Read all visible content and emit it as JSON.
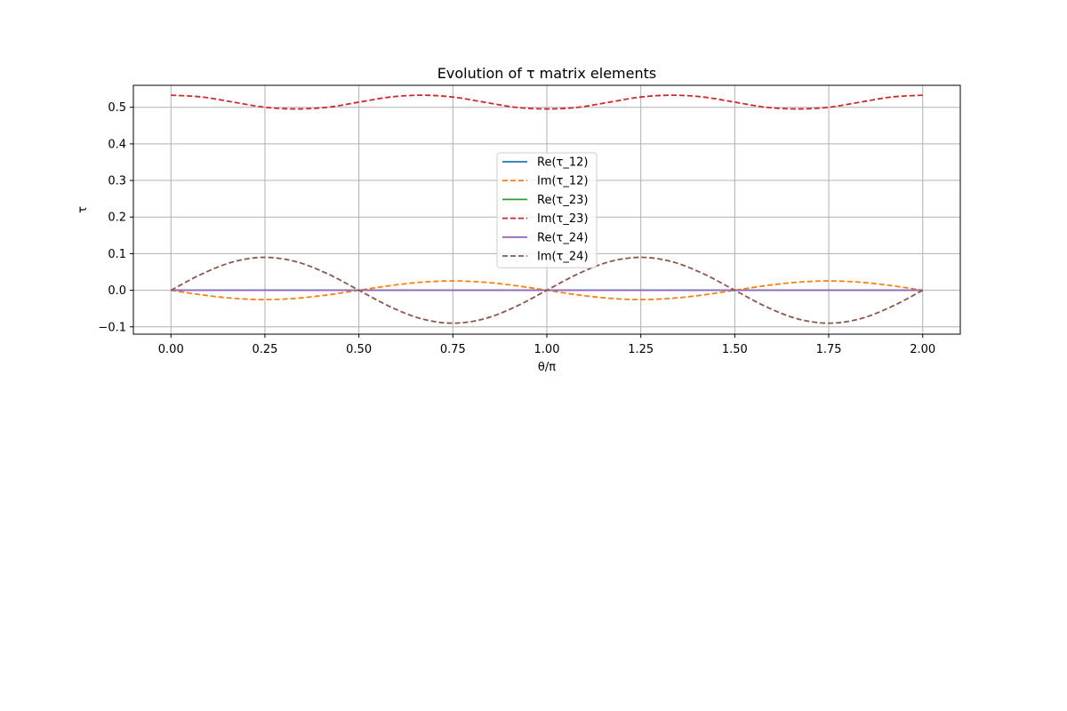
{
  "chart_data": {
    "type": "line",
    "title": "Evolution of τ matrix elements",
    "xlabel": "θ/π",
    "ylabel": "τ",
    "xlim": [
      -0.1,
      2.1
    ],
    "ylim": [
      -0.12,
      0.56
    ],
    "xticks": [
      0.0,
      0.25,
      0.5,
      0.75,
      1.0,
      1.25,
      1.5,
      1.75,
      2.0
    ],
    "xtick_labels": [
      "0.00",
      "0.25",
      "0.50",
      "0.75",
      "1.00",
      "1.25",
      "1.50",
      "1.75",
      "2.00"
    ],
    "yticks": [
      -0.1,
      0.0,
      0.1,
      0.2,
      0.3,
      0.4,
      0.5
    ],
    "ytick_labels": [
      "−0.1",
      "0.0",
      "0.1",
      "0.2",
      "0.3",
      "0.4",
      "0.5"
    ],
    "grid": true,
    "legend_position": "center",
    "x": [
      0.0,
      0.0833,
      0.1667,
      0.25,
      0.3333,
      0.4167,
      0.5,
      0.5833,
      0.6667,
      0.75,
      0.8333,
      0.9167,
      1.0,
      1.0833,
      1.1667,
      1.25,
      1.3333,
      1.4167,
      1.5,
      1.5833,
      1.6667,
      1.75,
      1.8333,
      1.9167,
      2.0
    ],
    "series": [
      {
        "name": "Re(τ_12)",
        "color": "#1f77b4",
        "dashed": false,
        "values": [
          0,
          0,
          0,
          0,
          0,
          0,
          0,
          0,
          0,
          0,
          0,
          0,
          0,
          0,
          0,
          0,
          0,
          0,
          0,
          0,
          0,
          0,
          0,
          0,
          0
        ]
      },
      {
        "name": "Im(τ_12)",
        "color": "#ff7f0e",
        "dashed": true,
        "values": [
          0.0,
          -0.0127,
          -0.022,
          -0.0254,
          -0.022,
          -0.0127,
          0.0,
          0.0127,
          0.022,
          0.0254,
          0.022,
          0.0127,
          0.0,
          -0.0127,
          -0.022,
          -0.0254,
          -0.022,
          -0.0127,
          0.0,
          0.0127,
          0.022,
          0.0254,
          0.022,
          0.0127,
          0.0
        ]
      },
      {
        "name": "Re(τ_23)",
        "color": "#2ca02c",
        "dashed": false,
        "values": [
          0,
          0,
          0,
          0,
          0,
          0,
          0,
          0,
          0,
          0,
          0,
          0,
          0,
          0,
          0,
          0,
          0,
          0,
          0,
          0,
          0,
          0,
          0,
          0,
          0
        ]
      },
      {
        "name": "Im(τ_23)",
        "color": "#d62728",
        "dashed": true,
        "values": [
          0.533,
          0.528,
          0.514,
          0.5,
          0.4955,
          0.5,
          0.514,
          0.528,
          0.533,
          0.528,
          0.514,
          0.5,
          0.4955,
          0.5,
          0.514,
          0.528,
          0.533,
          0.528,
          0.514,
          0.5,
          0.4955,
          0.5,
          0.514,
          0.528,
          0.533
        ]
      },
      {
        "name": "Re(τ_24)",
        "color": "#9467bd",
        "dashed": false,
        "values": [
          0,
          0,
          0,
          0,
          0,
          0,
          0,
          0,
          0,
          0,
          0,
          0,
          0,
          0,
          0,
          0,
          0,
          0,
          0,
          0,
          0,
          0,
          0,
          0,
          0
        ]
      },
      {
        "name": "Im(τ_24)",
        "color": "#8c564b",
        "dashed": true,
        "values": [
          0.0,
          0.045,
          0.078,
          0.09,
          0.078,
          0.045,
          0.0,
          -0.045,
          -0.078,
          -0.09,
          -0.078,
          -0.045,
          0.0,
          0.045,
          0.078,
          0.09,
          0.078,
          0.045,
          0.0,
          -0.045,
          -0.078,
          -0.09,
          -0.078,
          -0.045,
          0.0
        ]
      }
    ]
  }
}
